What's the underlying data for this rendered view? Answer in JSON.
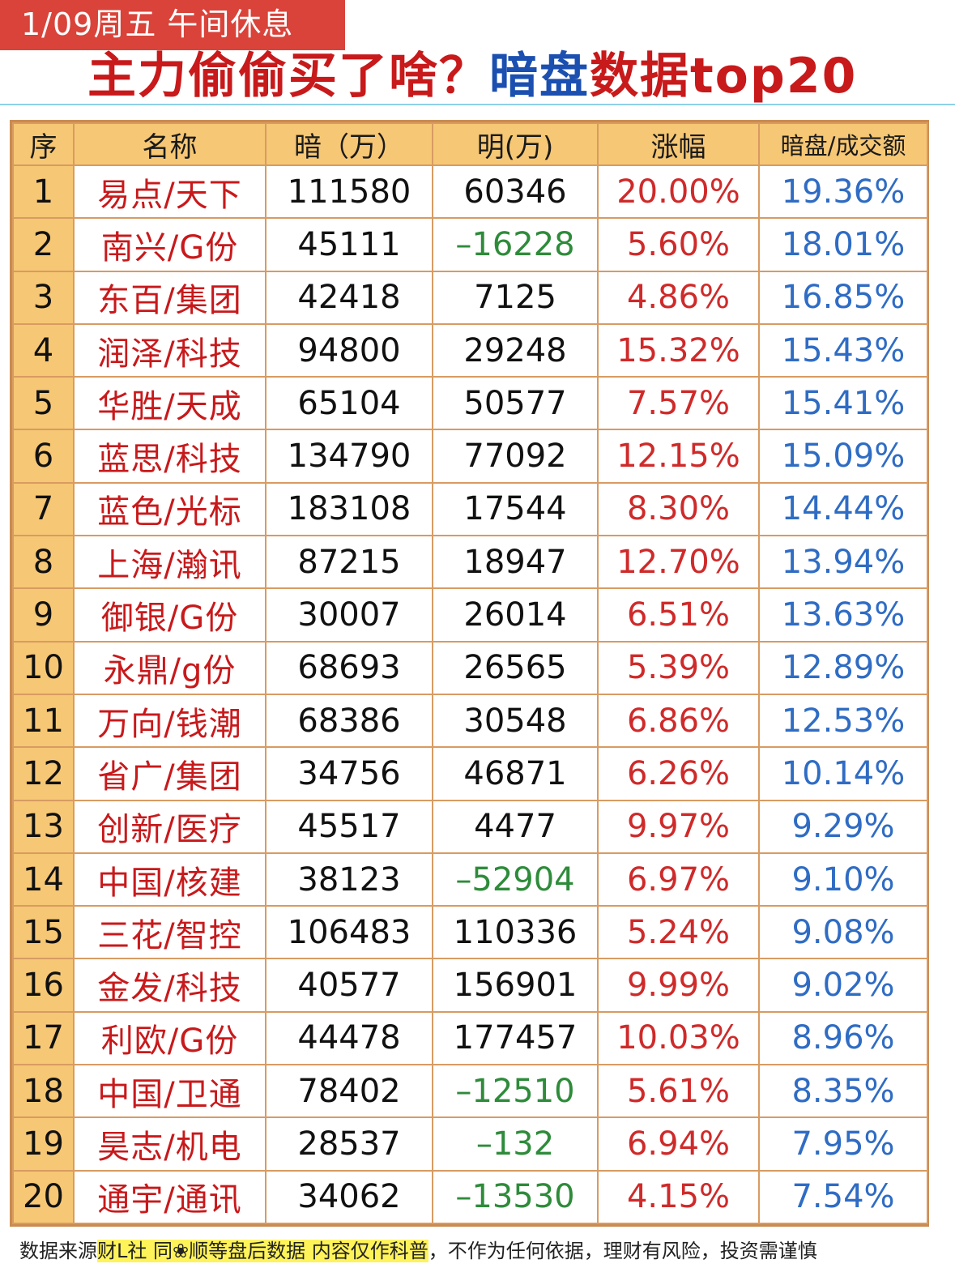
{
  "banner": {
    "date_text": "1/09周五  午间休息"
  },
  "headline": {
    "red_part": "主力偷偷买了啥？",
    "blue_part": "暗盘",
    "red_tail": "数据top20"
  },
  "table": {
    "headers": [
      "序",
      "名称",
      "暗（万）",
      "明(万)",
      "涨幅",
      "暗盘/成交额"
    ],
    "rows": [
      {
        "idx": "1",
        "name": "易点/天下",
        "dark": "111580",
        "light": "60346",
        "chg": "20.00%",
        "ratio": "19.36%"
      },
      {
        "idx": "2",
        "name": "南兴/G份",
        "dark": "45111",
        "light": "–16228",
        "chg": "5.60%",
        "ratio": "18.01%"
      },
      {
        "idx": "3",
        "name": "东百/集团",
        "dark": "42418",
        "light": "7125",
        "chg": "4.86%",
        "ratio": "16.85%"
      },
      {
        "idx": "4",
        "name": "润泽/科技",
        "dark": "94800",
        "light": "29248",
        "chg": "15.32%",
        "ratio": "15.43%"
      },
      {
        "idx": "5",
        "name": "华胜/天成",
        "dark": "65104",
        "light": "50577",
        "chg": "7.57%",
        "ratio": "15.41%"
      },
      {
        "idx": "6",
        "name": "蓝思/科技",
        "dark": "134790",
        "light": "77092",
        "chg": "12.15%",
        "ratio": "15.09%"
      },
      {
        "idx": "7",
        "name": "蓝色/光标",
        "dark": "183108",
        "light": "17544",
        "chg": "8.30%",
        "ratio": "14.44%"
      },
      {
        "idx": "8",
        "name": "上海/瀚讯",
        "dark": "87215",
        "light": "18947",
        "chg": "12.70%",
        "ratio": "13.94%"
      },
      {
        "idx": "9",
        "name": "御银/G份",
        "dark": "30007",
        "light": "26014",
        "chg": "6.51%",
        "ratio": "13.63%"
      },
      {
        "idx": "10",
        "name": "永鼎/g份",
        "dark": "68693",
        "light": "26565",
        "chg": "5.39%",
        "ratio": "12.89%"
      },
      {
        "idx": "11",
        "name": "万向/钱潮",
        "dark": "68386",
        "light": "30548",
        "chg": "6.86%",
        "ratio": "12.53%"
      },
      {
        "idx": "12",
        "name": "省广/集团",
        "dark": "34756",
        "light": "46871",
        "chg": "6.26%",
        "ratio": "10.14%"
      },
      {
        "idx": "13",
        "name": "创新/医疗",
        "dark": "45517",
        "light": "4477",
        "chg": "9.97%",
        "ratio": "9.29%"
      },
      {
        "idx": "14",
        "name": "中国/核建",
        "dark": "38123",
        "light": "–52904",
        "chg": "6.97%",
        "ratio": "9.10%"
      },
      {
        "idx": "15",
        "name": "三花/智控",
        "dark": "106483",
        "light": "110336",
        "chg": "5.24%",
        "ratio": "9.08%"
      },
      {
        "idx": "16",
        "name": "金发/科技",
        "dark": "40577",
        "light": "156901",
        "chg": "9.99%",
        "ratio": "9.02%"
      },
      {
        "idx": "17",
        "name": "利欧/G份",
        "dark": "44478",
        "light": "177457",
        "chg": "10.03%",
        "ratio": "8.96%"
      },
      {
        "idx": "18",
        "name": "中国/卫通",
        "dark": "78402",
        "light": "–12510",
        "chg": "5.61%",
        "ratio": "8.35%"
      },
      {
        "idx": "19",
        "name": "昊志/机电",
        "dark": "28537",
        "light": "–132",
        "chg": "6.94%",
        "ratio": "7.95%"
      },
      {
        "idx": "20",
        "name": "通宇/通讯",
        "dark": "34062",
        "light": "–13530",
        "chg": "4.15%",
        "ratio": "7.54%"
      }
    ]
  },
  "footer": {
    "prefix": "数据来源",
    "highlight": "财L社  同❀顺等盘后数据  内容仅作科普",
    "suffix": "，不作为任何依据，理财有风险，投资需谨慎"
  },
  "colors": {
    "banner_bg": "#d9433a",
    "header_bg": "#f6c774",
    "border": "#d89b62",
    "name_red": "#c8191b",
    "negative_green": "#2e8b3a",
    "change_red": "#cf2a2a",
    "ratio_blue": "#2f6cc4"
  }
}
